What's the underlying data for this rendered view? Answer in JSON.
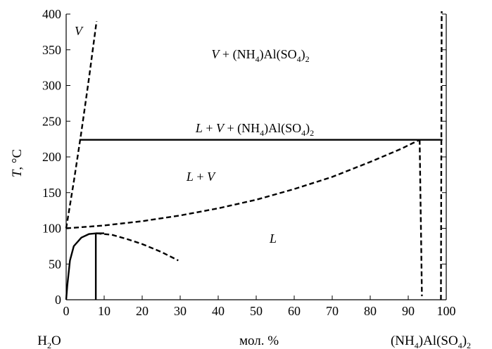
{
  "chart_data": {
    "type": "phase-diagram",
    "xlim": [
      0,
      100
    ],
    "ylim": [
      0,
      400
    ],
    "x_ticks": [
      0,
      10,
      20,
      30,
      40,
      50,
      60,
      70,
      80,
      90,
      100
    ],
    "y_ticks": [
      0,
      50,
      100,
      150,
      200,
      250,
      300,
      350,
      400
    ],
    "xlabel": "мол. %",
    "ylabel": {
      "main": "T",
      "unit": ", °C"
    },
    "x_left_component": {
      "main": "H",
      "sub": "2",
      "tail": "O"
    },
    "x_right_component": {
      "p1": "(NH",
      "s1": "4",
      "p2": ")Al(SO",
      "s2": "4",
      "p3": ")",
      "s3": "2"
    },
    "region_labels": {
      "V": "V",
      "V_solid": {
        "italic": "V",
        "rest": " + (NH",
        "s1": "4",
        "p2": ")Al(SO",
        "s2": "4",
        "p3": ")",
        "s3": "2"
      },
      "LV_solid": {
        "italic1": "L",
        "mid": " + ",
        "italic2": "V",
        "rest": " + (NH",
        "s1": "4",
        "p2": ")Al(SO",
        "s2": "4",
        "p3": ")",
        "s3": "2"
      },
      "LV": {
        "italic1": "L",
        "mid": " + ",
        "italic2": "V"
      },
      "L": "L"
    },
    "series": [
      {
        "style": "dashed",
        "points": [
          [
            0,
            100
          ],
          [
            2,
            165
          ],
          [
            4,
            235
          ],
          [
            6,
            310
          ],
          [
            8,
            390
          ]
        ]
      },
      {
        "style": "solid",
        "points": [
          [
            3.5,
            224
          ],
          [
            99,
            224
          ]
        ]
      },
      {
        "style": "dashed",
        "points": [
          [
            0,
            100
          ],
          [
            10,
            104
          ],
          [
            20,
            110
          ],
          [
            30,
            118
          ],
          [
            40,
            128
          ],
          [
            50,
            140
          ],
          [
            60,
            155
          ],
          [
            70,
            172
          ],
          [
            80,
            193
          ],
          [
            88,
            211
          ],
          [
            93,
            224
          ]
        ]
      },
      {
        "style": "dashed",
        "points": [
          [
            93,
            224
          ],
          [
            93.2,
            150
          ],
          [
            93.4,
            80
          ],
          [
            93.6,
            5
          ]
        ]
      },
      {
        "style": "dashed",
        "points": [
          [
            98.6,
            0
          ],
          [
            98.7,
            200
          ],
          [
            98.8,
            404
          ]
        ]
      },
      {
        "style": "solid",
        "points": [
          [
            0,
            0
          ],
          [
            0.3,
            20
          ],
          [
            1,
            55
          ],
          [
            2,
            75
          ],
          [
            4,
            87
          ],
          [
            6,
            92
          ],
          [
            8,
            93
          ],
          [
            10,
            93
          ]
        ]
      },
      {
        "style": "solid",
        "points": [
          [
            7.8,
            0
          ],
          [
            7.8,
            93
          ]
        ]
      },
      {
        "style": "dashed",
        "points": [
          [
            8,
            93
          ],
          [
            12,
            91
          ],
          [
            16,
            85
          ],
          [
            20,
            78
          ],
          [
            25,
            67
          ],
          [
            29.5,
            55
          ]
        ]
      }
    ]
  }
}
